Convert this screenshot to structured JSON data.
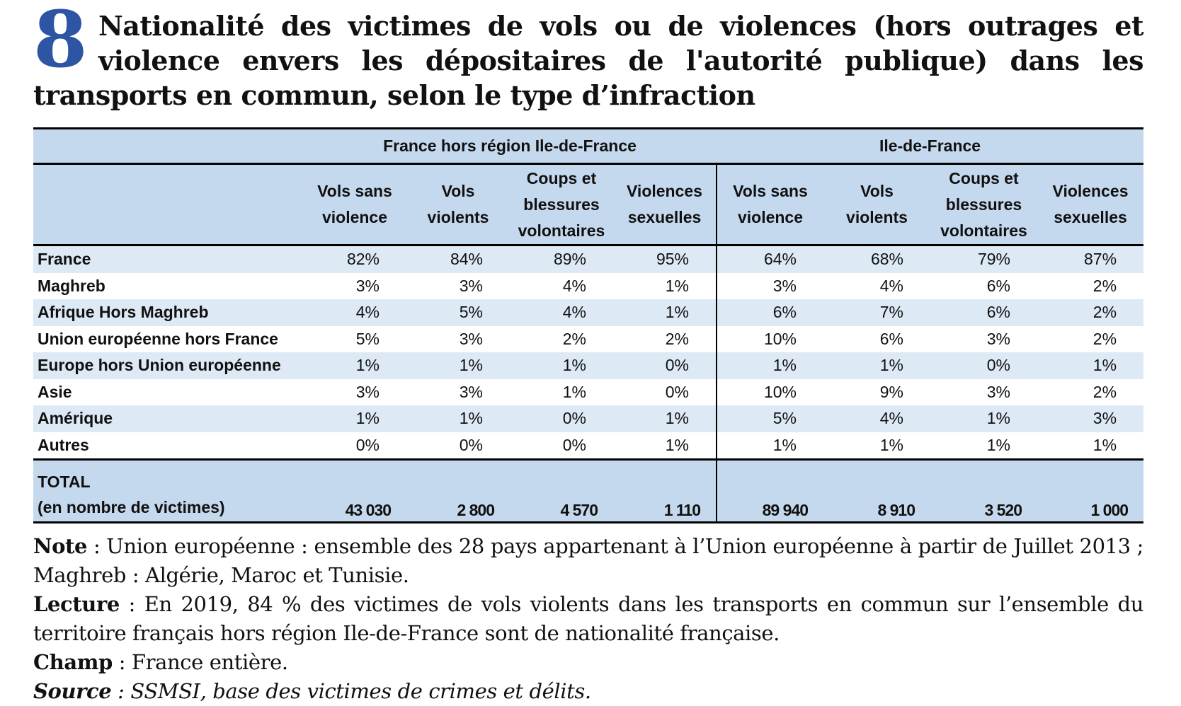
{
  "figure_number": "8",
  "title": "Nationalité des victimes de vols ou de violences (hors outrages et violence envers les dépositaires de l'autorité publique) dans les transports en commun, selon le type d’infraction",
  "colors": {
    "number": "#2e55a4",
    "header_bg": "#c5d9ee",
    "alt_row_bg": "#dde9f5"
  },
  "table": {
    "groups": [
      "France hors région Ile-de-France",
      "Ile-de-France"
    ],
    "columns": [
      [
        "Vols sans",
        "violence"
      ],
      [
        "Vols",
        "violents"
      ],
      [
        "Coups et",
        "blessures",
        "volontaires"
      ],
      [
        "Violences",
        "sexuelles"
      ]
    ],
    "rows": [
      {
        "label": "France",
        "values": [
          "82%",
          "84%",
          "89%",
          "95%",
          "64%",
          "68%",
          "79%",
          "87%"
        ]
      },
      {
        "label": "Maghreb",
        "values": [
          "3%",
          "3%",
          "4%",
          "1%",
          "3%",
          "4%",
          "6%",
          "2%"
        ]
      },
      {
        "label": "Afrique Hors Maghreb",
        "values": [
          "4%",
          "5%",
          "4%",
          "1%",
          "6%",
          "7%",
          "6%",
          "2%"
        ]
      },
      {
        "label": "Union européenne hors France",
        "values": [
          "5%",
          "3%",
          "2%",
          "2%",
          "10%",
          "6%",
          "3%",
          "2%"
        ]
      },
      {
        "label": "Europe hors Union européenne",
        "values": [
          "1%",
          "1%",
          "1%",
          "0%",
          "1%",
          "1%",
          "0%",
          "1%"
        ]
      },
      {
        "label": "Asie",
        "values": [
          "3%",
          "3%",
          "1%",
          "0%",
          "10%",
          "9%",
          "3%",
          "2%"
        ]
      },
      {
        "label": "Amérique",
        "values": [
          "1%",
          "1%",
          "0%",
          "1%",
          "5%",
          "4%",
          "1%",
          "3%"
        ]
      },
      {
        "label": "Autres",
        "values": [
          "0%",
          "0%",
          "0%",
          "1%",
          "1%",
          "1%",
          "1%",
          "1%"
        ]
      }
    ],
    "total": {
      "label_line1": "TOTAL",
      "label_line2": "(en nombre de victimes)",
      "values": [
        "43 030",
        "2 800",
        "4 570",
        "1 110",
        "89 940",
        "8 910",
        "3 520",
        "1 000"
      ]
    }
  },
  "notes": {
    "note_label": "Note",
    "note_text": " : Union européenne : ensemble des 28 pays appartenant à l’Union européenne à partir de Juillet 2013 ; Maghreb : Algérie, Maroc et Tunisie.",
    "lecture_label": "Lecture",
    "lecture_text": " : En 2019, 84 % des victimes de vols violents dans les transports en commun sur l’ensemble du territoire français hors région Ile-de-France sont de nationalité française.",
    "champ_label": "Champ",
    "champ_text": " : France entière.",
    "source_label": "Source",
    "source_text": " : SSMSI, base des victimes de crimes et délits."
  }
}
